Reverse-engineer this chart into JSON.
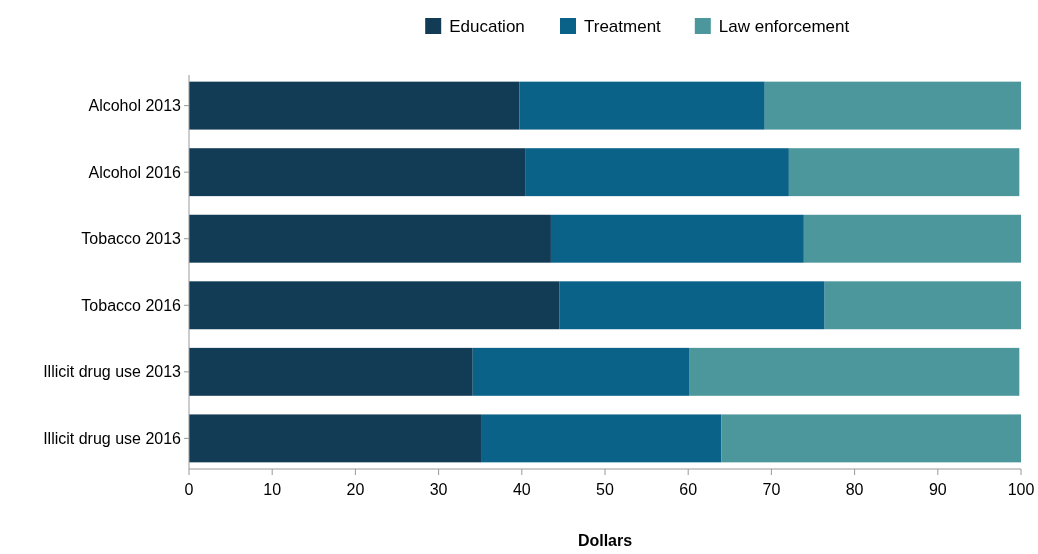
{
  "chart_data": {
    "type": "bar",
    "orientation": "horizontal",
    "stacked": true,
    "xlabel": "Dollars",
    "categories": [
      "Alcohol 2013",
      "Alcohol 2016",
      "Tobacco 2013",
      "Tobacco 2016",
      "Illicit drug use 2013",
      "Illicit drug use 2016"
    ],
    "series": [
      {
        "name": "Education",
        "color": "#123b55",
        "values": [
          39.7,
          40.4,
          43.5,
          44.5,
          34.1,
          35.1
        ]
      },
      {
        "name": "Treatment",
        "color": "#0b6289",
        "values": [
          29.5,
          31.7,
          30.4,
          31.9,
          26.0,
          28.9
        ]
      },
      {
        "name": "Law enforcement",
        "color": "#4c979c",
        "values": [
          30.8,
          27.7,
          26.1,
          23.6,
          39.7,
          36.0
        ]
      }
    ],
    "xlim": [
      0,
      100
    ],
    "xticks": [
      0,
      10,
      20,
      30,
      40,
      50,
      60,
      70,
      80,
      90,
      100
    ],
    "grid": false,
    "legend": "top"
  }
}
